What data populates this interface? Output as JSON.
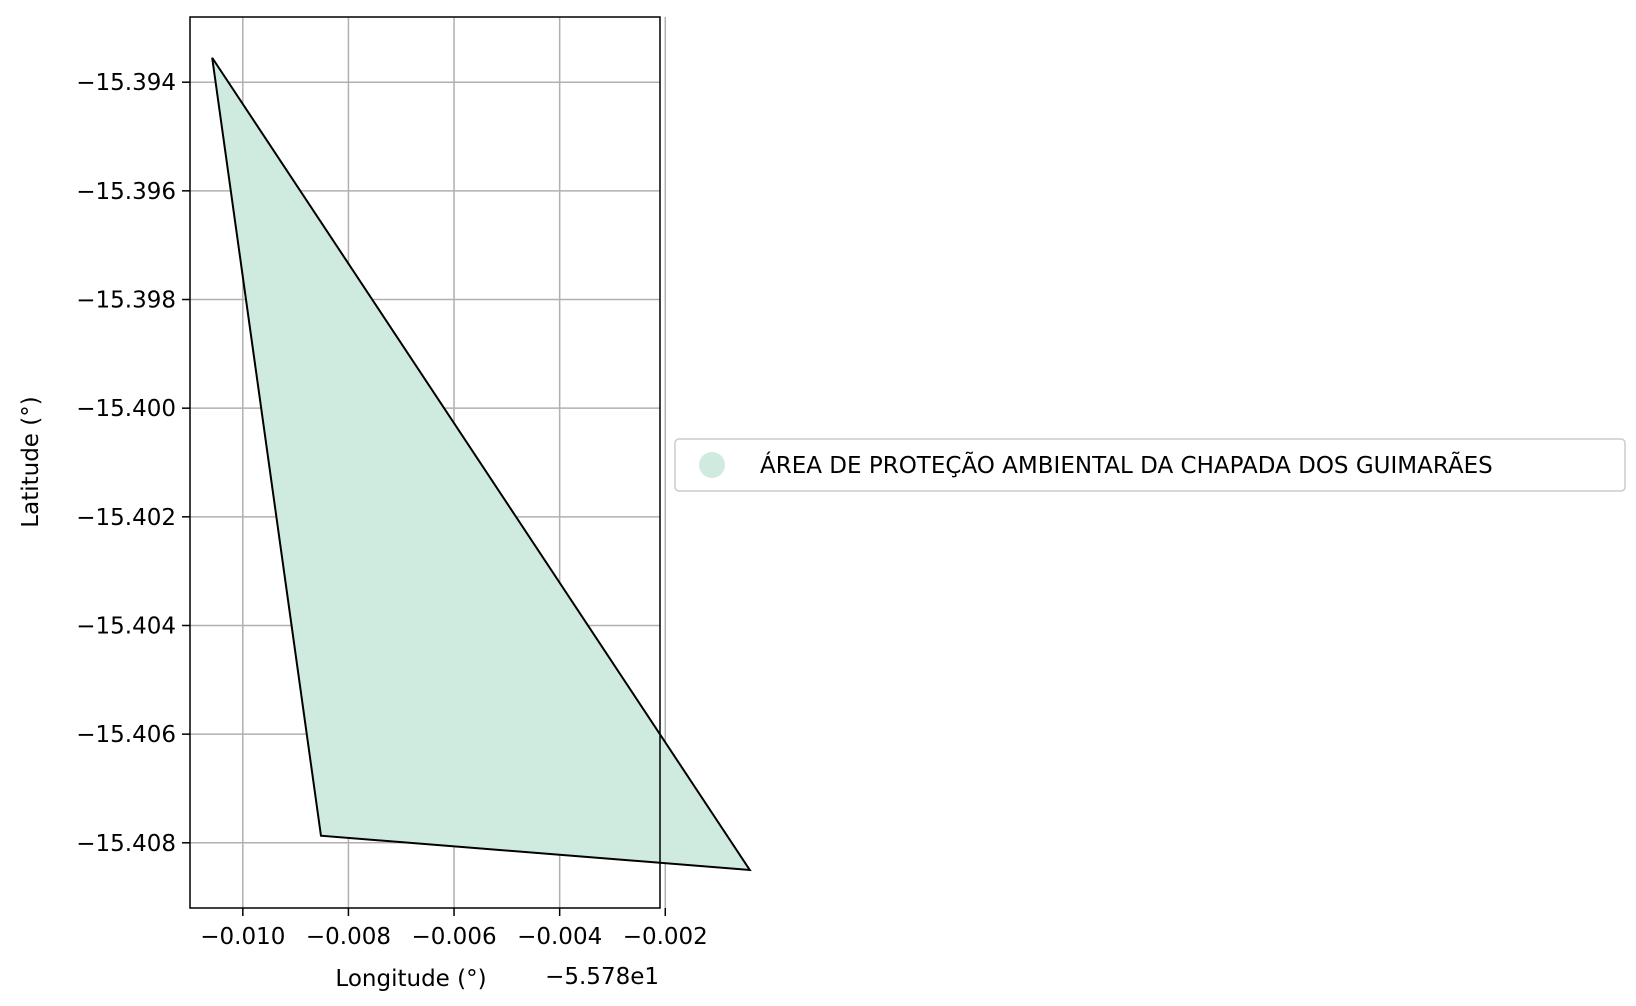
{
  "chart_data": {
    "type": "map",
    "xlabel": "Longitude (°)",
    "ylabel": "Latitude (°)",
    "x_offset_label": "−5.578e1",
    "xlim": [
      -0.011,
      -0.0021
    ],
    "ylim": [
      -15.4092,
      -15.3928
    ],
    "x_ticks": [
      -0.01,
      -0.008,
      -0.006,
      -0.004,
      -0.002
    ],
    "x_tick_labels": [
      "−0.010",
      "−0.008",
      "−0.006",
      "−0.004",
      "−0.002"
    ],
    "y_ticks": [
      -15.394,
      -15.396,
      -15.398,
      -15.4,
      -15.402,
      -15.404,
      -15.406,
      -15.408
    ],
    "y_tick_labels": [
      "−15.394",
      "−15.396",
      "−15.398",
      "−15.400",
      "−15.402",
      "−15.404",
      "−15.406",
      "−15.408"
    ],
    "grid": true,
    "legend_position": "right",
    "colors": {
      "fill": "#cfebdf",
      "edge": "#000000",
      "grid": "#b0b0b0"
    },
    "polygon": {
      "name": "ÁREA DE PROTEÇÃO AMBIENTAL DA CHAPADA DOS GUIMARÃES",
      "points": [
        [
          -0.01058,
          -15.39355
        ],
        [
          -0.00852,
          -15.40787
        ],
        [
          -0.0004,
          -15.4085
        ],
        [
          -0.01058,
          -15.39355
        ]
      ]
    }
  }
}
